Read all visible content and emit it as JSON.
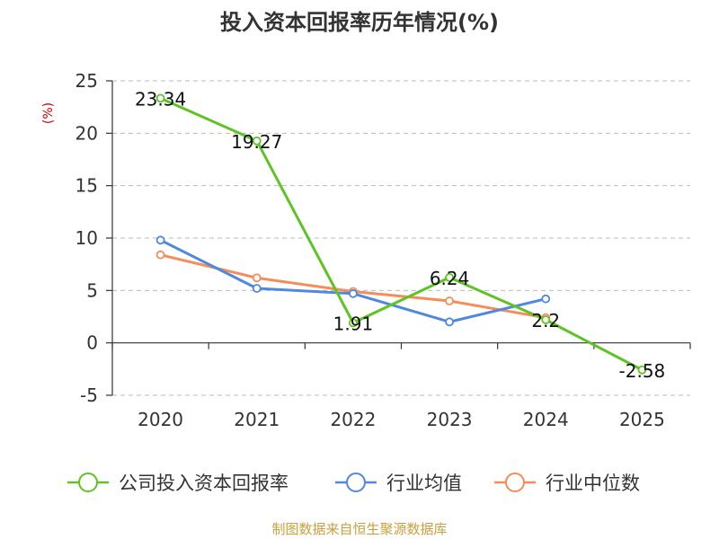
{
  "colors": {
    "series": [
      "#5ec424",
      "#5088e0",
      "#f58d58"
    ],
    "axis": "#333333",
    "grid": "#bbbbbb",
    "ylabel": "#cc0000",
    "source": "#c8a03c"
  },
  "chart_data": {
    "type": "line",
    "title": "投入资本回报率历年情况(%)",
    "xlabel": "",
    "ylabel": "(%)",
    "categories": [
      "2020",
      "2021",
      "2022",
      "2023",
      "2024",
      "2025"
    ],
    "ylim": [
      -5,
      25
    ],
    "yticks": [
      -5,
      0,
      5,
      10,
      15,
      20,
      25
    ],
    "grid": true,
    "legend_position": "bottom",
    "series": [
      {
        "name": "公司投入资本回报率",
        "values": [
          23.34,
          19.27,
          1.91,
          6.24,
          2.2,
          -2.58
        ],
        "labels": [
          "23.34",
          "19.27",
          "1.91",
          "6.24",
          "2.2",
          "-2.58"
        ]
      },
      {
        "name": "行业均值",
        "values": [
          9.8,
          5.2,
          4.7,
          2.0,
          4.2,
          null
        ]
      },
      {
        "name": "行业中位数",
        "values": [
          8.4,
          6.2,
          4.9,
          4.0,
          2.4,
          null
        ]
      }
    ]
  },
  "source_text": "制图数据来自恒生聚源数据库"
}
